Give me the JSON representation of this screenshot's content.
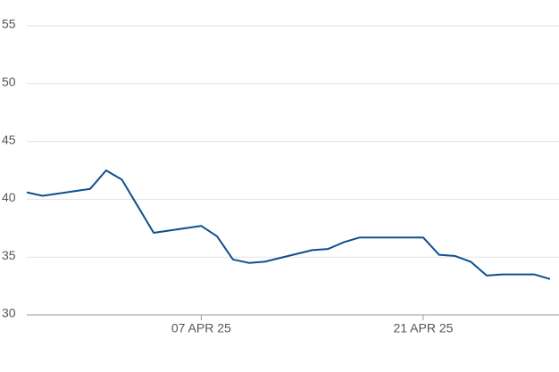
{
  "chart_data": {
    "type": "line",
    "x": [
      "2025-03-27",
      "2025-03-28",
      "2025-03-31",
      "2025-04-01",
      "2025-04-02",
      "2025-04-03",
      "2025-04-04",
      "2025-04-07",
      "2025-04-08",
      "2025-04-09",
      "2025-04-10",
      "2025-04-11",
      "2025-04-14",
      "2025-04-15",
      "2025-04-16",
      "2025-04-17",
      "2025-04-21",
      "2025-04-22",
      "2025-04-23",
      "2025-04-24",
      "2025-04-25",
      "2025-04-26",
      "2025-04-28",
      "2025-04-29"
    ],
    "series": [
      {
        "color": "#0f4f8f",
        "values": [
          40.6,
          40.3,
          40.9,
          42.5,
          41.7,
          39.4,
          37.1,
          37.7,
          36.8,
          34.8,
          34.5,
          34.6,
          35.6,
          35.7,
          36.3,
          36.7,
          36.7,
          35.2,
          35.1,
          34.6,
          33.4,
          33.5,
          33.5,
          33.1
        ]
      }
    ],
    "xlim": [
      "2025-03-27",
      "2025-04-29"
    ],
    "xticks": [
      {
        "value": "2025-04-07",
        "label": "07 APR 25"
      },
      {
        "value": "2025-04-21",
        "label": "21 APR 25"
      }
    ],
    "ylim": [
      30,
      55
    ],
    "yticks": [
      30,
      35,
      40,
      45,
      50,
      55
    ],
    "grid": true
  }
}
